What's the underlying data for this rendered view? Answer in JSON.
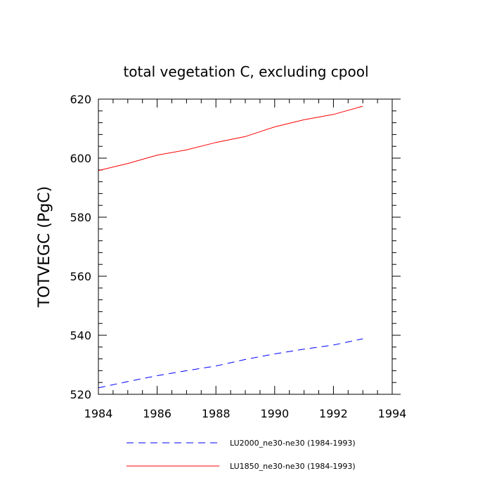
{
  "chart_data": {
    "type": "line",
    "title": "total vegetation C, excluding cpool",
    "xlabel": "",
    "ylabel": "TOTVEGC  (PgC)",
    "xlim": [
      1984,
      1994
    ],
    "ylim": [
      520,
      620
    ],
    "x_ticks": [
      1984,
      1986,
      1988,
      1990,
      1992,
      1994
    ],
    "y_ticks": [
      520,
      540,
      560,
      580,
      600,
      620
    ],
    "x": [
      1984,
      1985,
      1986,
      1987,
      1988,
      1989,
      1990,
      1991,
      1992,
      1993
    ],
    "series": [
      {
        "name": "LU2000_ne30-ne30 (1984-1993)",
        "color": "#0000ff",
        "dash": "dashed",
        "values": [
          522.2,
          524.3,
          526.3,
          528.0,
          529.6,
          531.8,
          533.7,
          535.3,
          536.7,
          538.8
        ]
      },
      {
        "name": "LU1850_ne30-ne30 (1984-1993)",
        "color": "#ff0000",
        "dash": "solid",
        "values": [
          595.8,
          598.2,
          601.0,
          602.8,
          605.3,
          607.3,
          610.6,
          613.0,
          614.8,
          617.6
        ]
      }
    ],
    "legend_position": "bottom"
  }
}
